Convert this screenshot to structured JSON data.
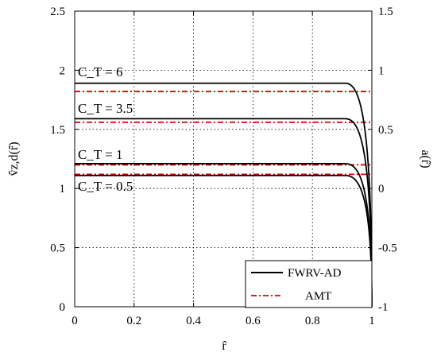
{
  "chart_data": {
    "type": "line",
    "xlabel": "r̂",
    "ylabel_left": "v̂z,d(r̂)",
    "ylabel_right": "a(r̂)",
    "xlim": [
      0,
      1
    ],
    "ylim_left": [
      0,
      2.5
    ],
    "ylim_right": [
      -1,
      1.5
    ],
    "x_ticks": [
      "0",
      "0.2",
      "0.4",
      "0.6",
      "0.8",
      "1"
    ],
    "y_left_ticks": [
      "0",
      "0.5",
      "1",
      "1.5",
      "2",
      "2.5"
    ],
    "y_right_ticks": [
      "-1",
      "-0.5",
      "0",
      "0.5",
      "1",
      "1.5"
    ],
    "grid": true,
    "legend_position": "bottom-right",
    "colors": {
      "fwrv": "#000000",
      "amt": "#e00000"
    },
    "annotations": [
      "C_T = 6",
      "C_T = 3.5",
      "C_T = 1",
      "C_T = 0.5"
    ],
    "series": [
      {
        "name": "FWRV-AD",
        "style": "solid",
        "curves": [
          {
            "ct": "6",
            "plateau": 1.89
          },
          {
            "ct": "3.5",
            "plateau": 1.59
          },
          {
            "ct": "1",
            "plateau": 1.21
          },
          {
            "ct": "0.5",
            "plateau": 1.11
          }
        ]
      },
      {
        "name": "AMT",
        "style": "dashdot",
        "curves": [
          {
            "ct": "6",
            "value": 1.82
          },
          {
            "ct": "3.5",
            "value": 1.56
          },
          {
            "ct": "1",
            "value": 1.2
          },
          {
            "ct": "0.5",
            "value": 1.12
          }
        ]
      }
    ]
  }
}
